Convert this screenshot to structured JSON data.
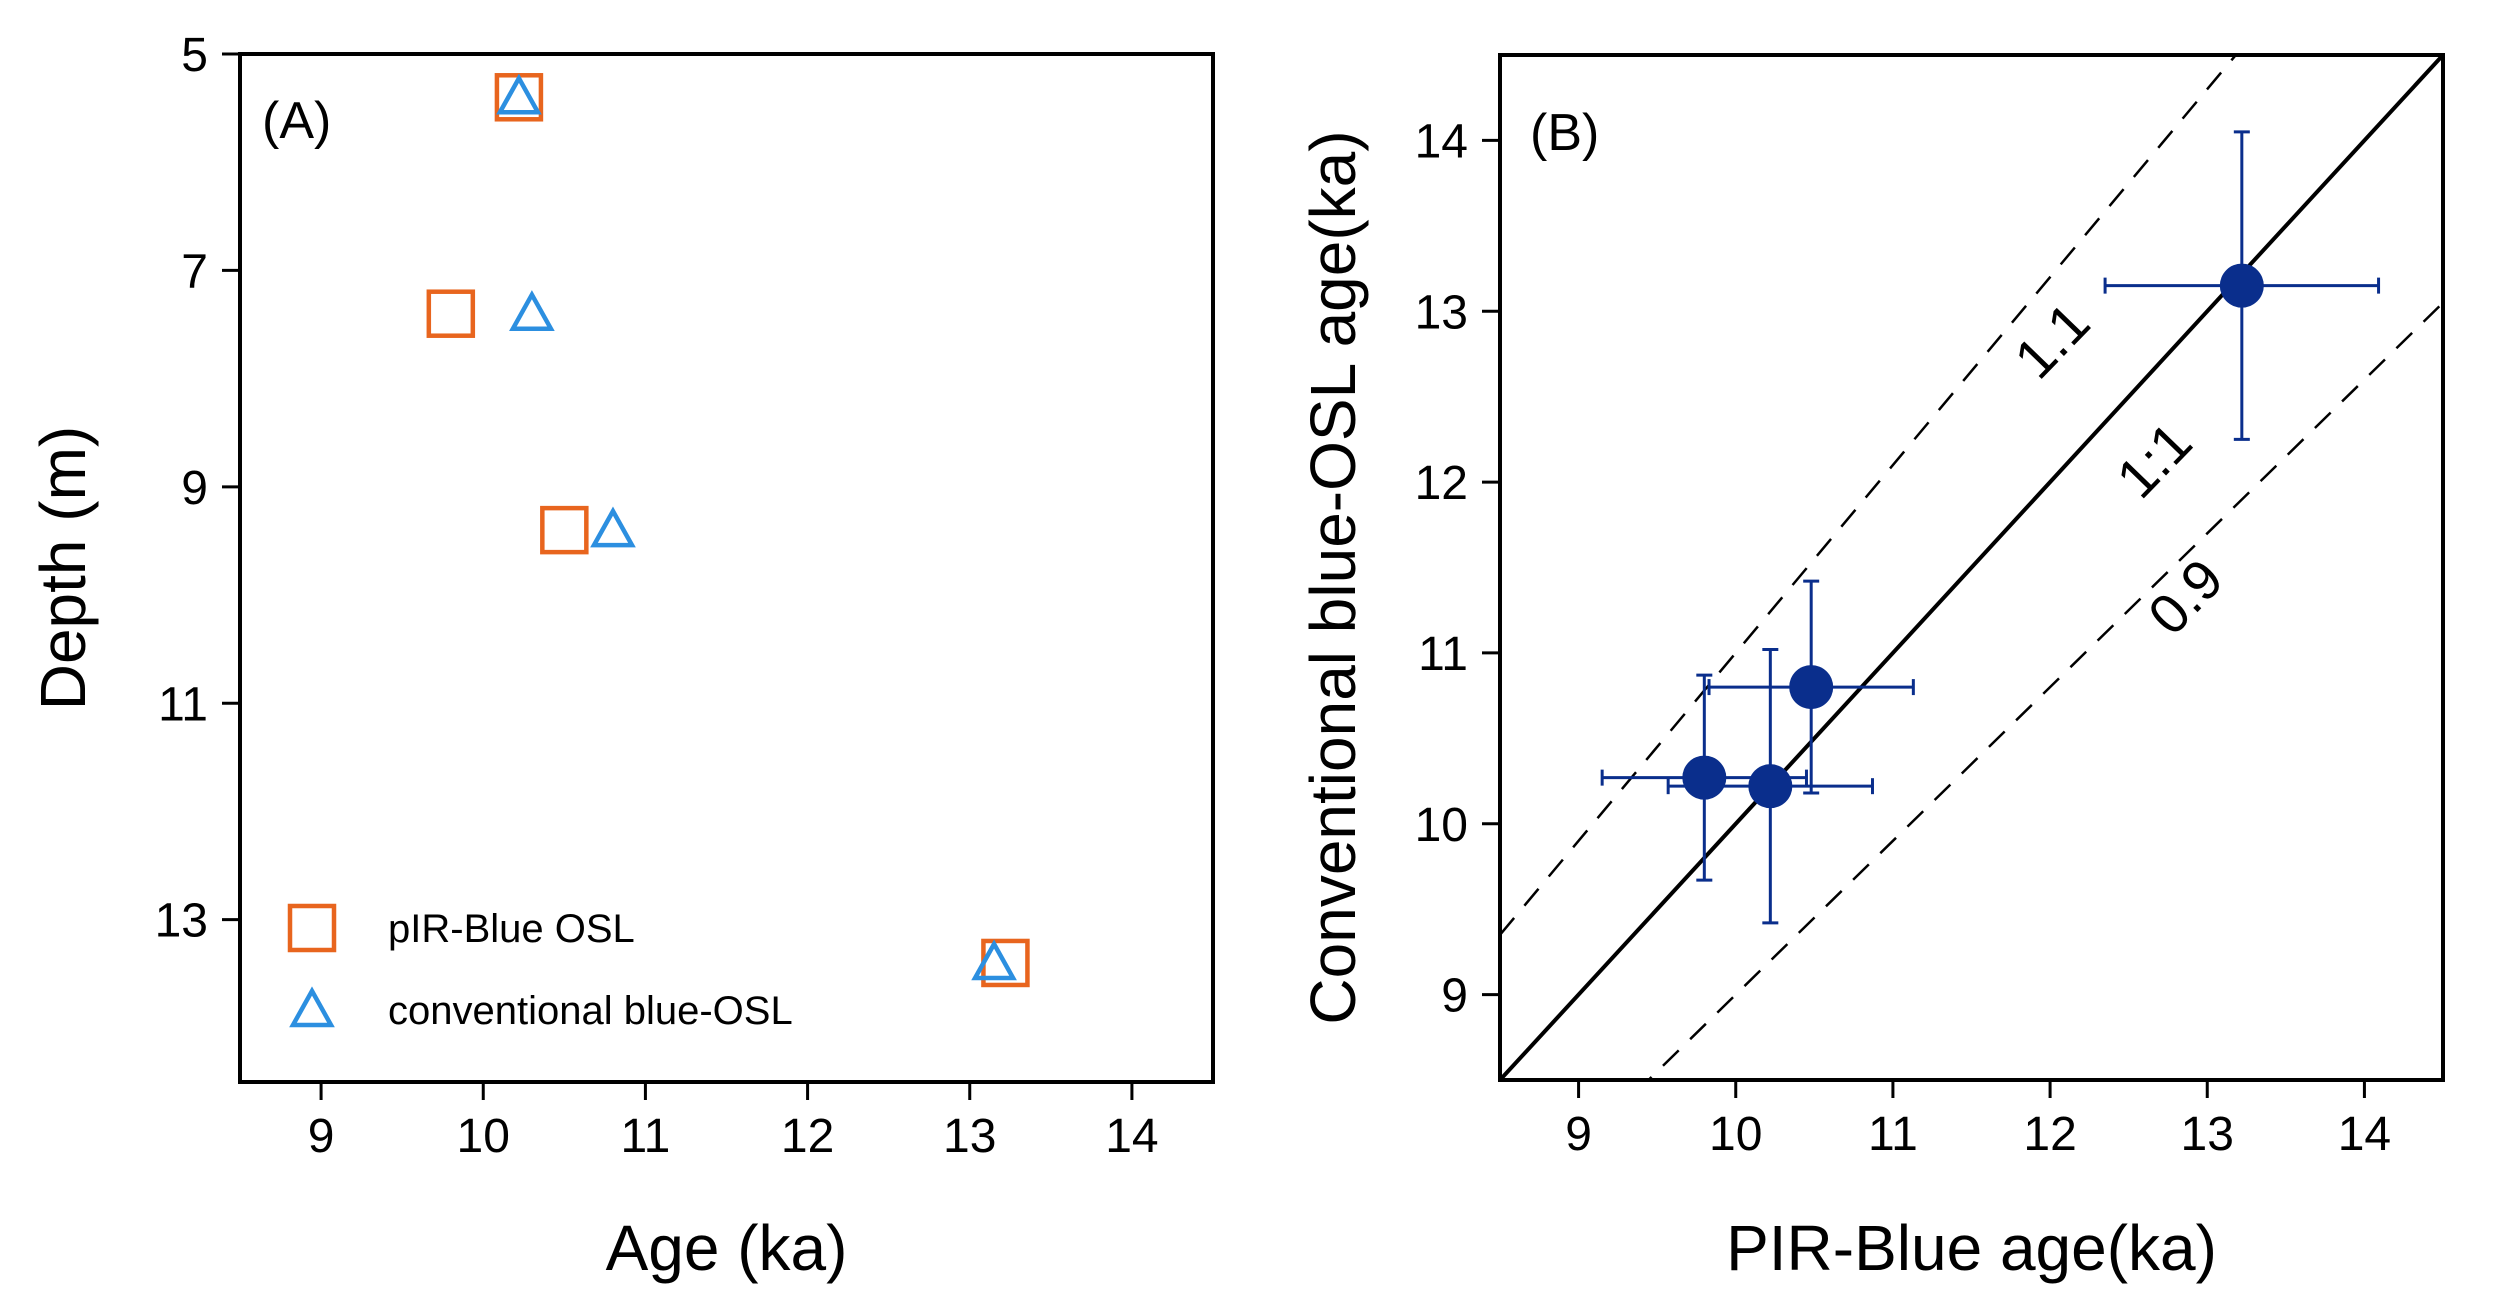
{
  "chart_data": [
    {
      "type": "scatter",
      "panel_label": "(A)",
      "xlabel": "Age (ka)",
      "ylabel": "Depth (m)",
      "xlim": [
        8.5,
        14.5
      ],
      "ylim": [
        5,
        14.5
      ],
      "y_inverted": true,
      "xticks": [
        9,
        10,
        11,
        12,
        13,
        14
      ],
      "yticks": [
        5,
        7,
        9,
        11,
        13
      ],
      "legend_position": "bottom-left",
      "series": [
        {
          "name": "pIR-Blue OSL",
          "marker": "square",
          "color": "#E8651E",
          "points": [
            {
              "age": 10.22,
              "depth": 5.4
            },
            {
              "age": 9.8,
              "depth": 7.4
            },
            {
              "age": 10.5,
              "depth": 9.4
            },
            {
              "age": 13.22,
              "depth": 13.4
            }
          ]
        },
        {
          "name": "conventional blue-OSL",
          "marker": "triangle",
          "color": "#2C8FE0",
          "points": [
            {
              "age": 10.22,
              "depth": 5.4
            },
            {
              "age": 10.3,
              "depth": 7.4
            },
            {
              "age": 10.8,
              "depth": 9.4
            },
            {
              "age": 13.15,
              "depth": 13.4
            }
          ]
        }
      ]
    },
    {
      "type": "scatter",
      "panel_label": "(B)",
      "xlabel": "PIR-Blue age(ka)",
      "ylabel": "Conventional blue-OSL age(ka)",
      "xlim": [
        8.5,
        14.5
      ],
      "ylim": [
        8.5,
        14.5
      ],
      "xticks": [
        9,
        10,
        11,
        12,
        13,
        14
      ],
      "yticks": [
        9,
        10,
        11,
        12,
        13,
        14
      ],
      "marker_color": "#0A2E8C",
      "reference_lines": [
        {
          "slope": 1.1,
          "label": "1.1",
          "style": "dashed"
        },
        {
          "slope": 1.0,
          "label": "1:1",
          "style": "solid"
        },
        {
          "slope": 0.9,
          "label": "0.9",
          "style": "dashed"
        }
      ],
      "points": [
        {
          "x": 13.22,
          "y": 13.15,
          "xerr": 0.87,
          "yerr": 0.9
        },
        {
          "x": 10.48,
          "y": 10.8,
          "xerr": 0.65,
          "yerr": 0.62
        },
        {
          "x": 9.8,
          "y": 10.27,
          "xerr": 0.65,
          "yerr": 0.6
        },
        {
          "x": 10.22,
          "y": 10.22,
          "xerr": 0.65,
          "yerr": 0.8
        }
      ]
    }
  ]
}
